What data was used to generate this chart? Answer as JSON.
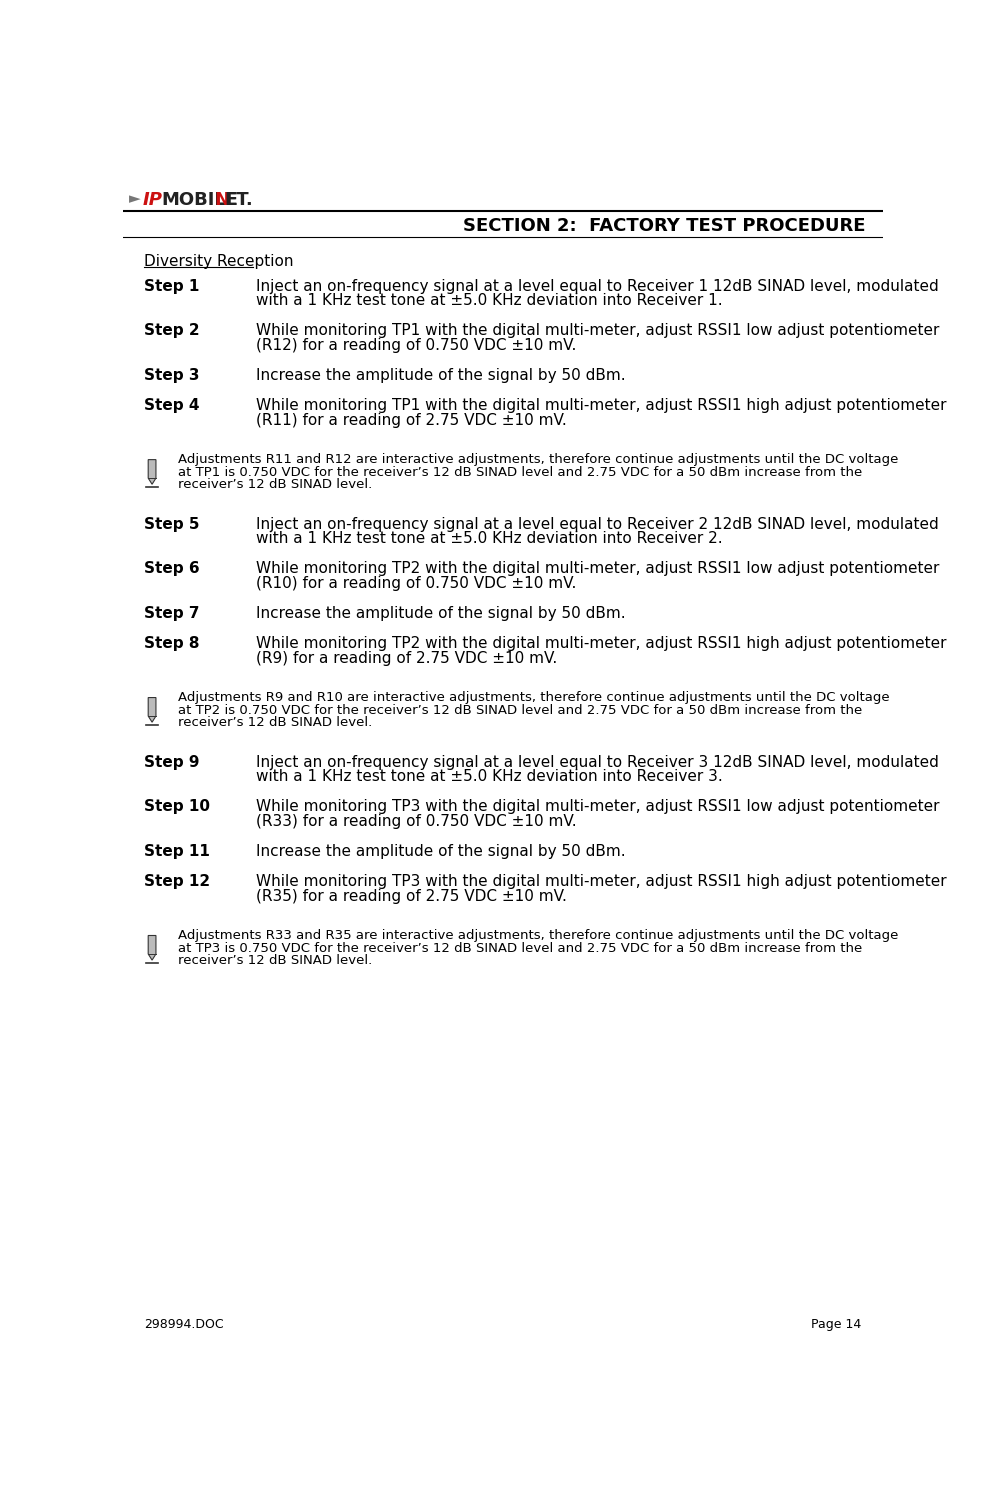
{
  "title": "SECTION 2:  FACTORY TEST PROCEDURE",
  "footer_left": "298994.DOC",
  "footer_right": "Page 14",
  "section_heading": "Diversity Reception",
  "steps": [
    {
      "label": "Step 1",
      "text": "Inject an on-frequency signal at a level equal to Receiver 1 12dB SINAD level, modulated\nwith a 1 KHz test tone at ±5.0 KHz deviation into Receiver 1."
    },
    {
      "label": "Step 2",
      "text": "While monitoring TP1 with the digital multi-meter, adjust RSSI1 low adjust potentiometer\n(R12) for a reading of 0.750 VDC ±10 mV."
    },
    {
      "label": "Step 3",
      "text": "Increase the amplitude of the signal by 50 dBm."
    },
    {
      "label": "Step 4",
      "text": "While monitoring TP1 with the digital multi-meter, adjust RSSI1 high adjust potentiometer\n(R11) for a reading of 2.75 VDC ±10 mV."
    }
  ],
  "note1": "Adjustments R11 and R12 are interactive adjustments, therefore continue adjustments until the DC voltage\nat TP1 is 0.750 VDC for the receiver’s 12 dB SINAD level and 2.75 VDC for a 50 dBm increase from the\nreceiver’s 12 dB SINAD level.",
  "steps2": [
    {
      "label": "Step 5",
      "text": "Inject an on-frequency signal at a level equal to Receiver 2 12dB SINAD level, modulated\nwith a 1 KHz test tone at ±5.0 KHz deviation into Receiver 2."
    },
    {
      "label": "Step 6",
      "text": "While monitoring TP2 with the digital multi-meter, adjust RSSI1 low adjust potentiometer\n(R10) for a reading of 0.750 VDC ±10 mV."
    },
    {
      "label": "Step 7",
      "text": "Increase the amplitude of the signal by 50 dBm."
    },
    {
      "label": "Step 8",
      "text": "While monitoring TP2 with the digital multi-meter, adjust RSSI1 high adjust potentiometer\n(R9) for a reading of 2.75 VDC ±10 mV."
    }
  ],
  "note2": "Adjustments R9 and R10 are interactive adjustments, therefore continue adjustments until the DC voltage\nat TP2 is 0.750 VDC for the receiver’s 12 dB SINAD level and 2.75 VDC for a 50 dBm increase from the\nreceiver’s 12 dB SINAD level.",
  "steps3": [
    {
      "label": "Step 9",
      "text": "Inject an on-frequency signal at a level equal to Receiver 3 12dB SINAD level, modulated\nwith a 1 KHz test tone at ±5.0 KHz deviation into Receiver 3."
    },
    {
      "label": "Step 10",
      "text": "While monitoring TP3 with the digital multi-meter, adjust RSSI1 low adjust potentiometer\n(R33) for a reading of 0.750 VDC ±10 mV."
    },
    {
      "label": "Step 11",
      "text": "Increase the amplitude of the signal by 50 dBm."
    },
    {
      "label": "Step 12",
      "text": "While monitoring TP3 with the digital multi-meter, adjust RSSI1 high adjust potentiometer\n(R35) for a reading of 2.75 VDC ±10 mV."
    }
  ],
  "note3": "Adjustments R33 and R35 are interactive adjustments, therefore continue adjustments until the DC voltage\nat TP3 is 0.750 VDC for the receiver’s 12 dB SINAD level and 2.75 VDC for a 50 dBm increase from the\nreceiver’s 12 dB SINAD level.",
  "bg_color": "#ffffff",
  "text_color": "#000000",
  "title_color": "#000000"
}
